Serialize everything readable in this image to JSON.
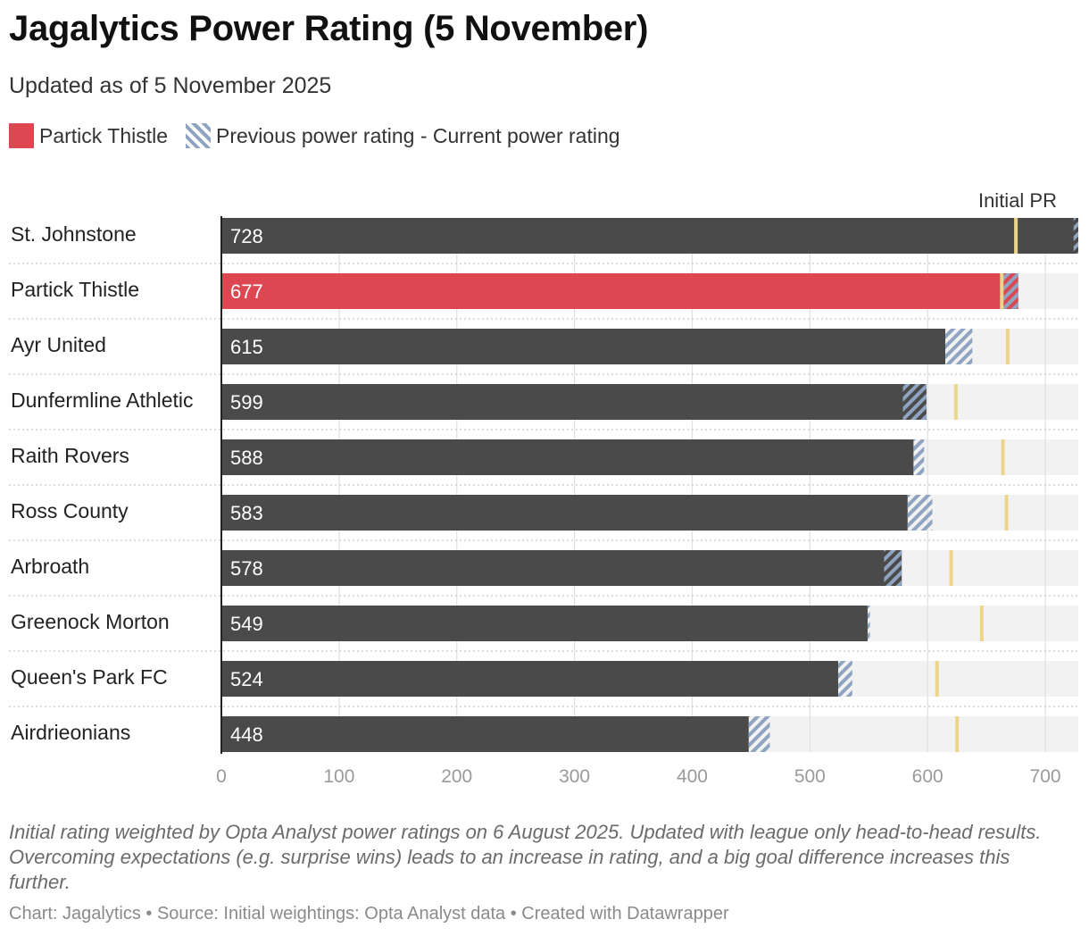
{
  "header": {
    "title": "Jagalytics Power Rating (5 November)",
    "subtitle": "Updated as of 5 November 2025"
  },
  "legend": {
    "highlight_label": "Partick Thistle",
    "change_label": "Previous power rating - Current power rating"
  },
  "chart_data": {
    "type": "bar",
    "orientation": "horizontal",
    "categories": [
      "St. Johnstone",
      "Partick Thistle",
      "Ayr United",
      "Dunfermline Athletic",
      "Raith Rovers",
      "Ross County",
      "Arbroath",
      "Greenock Morton",
      "Queen's Park FC",
      "Airdrieonians"
    ],
    "current": [
      728,
      677,
      615,
      599,
      588,
      583,
      578,
      549,
      524,
      448
    ],
    "previous": [
      724,
      664,
      638,
      579,
      597,
      604,
      563,
      551,
      536,
      466
    ],
    "initial": [
      675,
      663,
      668,
      624,
      664,
      667,
      620,
      646,
      608,
      625
    ],
    "value_labels": [
      "728",
      "677",
      "615",
      "599",
      "588",
      "583",
      "578",
      "549",
      "524",
      "448"
    ],
    "highlight": "Partick Thistle",
    "x_ticks": [
      0,
      100,
      200,
      300,
      400,
      500,
      600,
      700
    ],
    "x_tick_labels": [
      "0",
      "100",
      "200",
      "300",
      "400",
      "500",
      "600",
      "700"
    ],
    "xlim": [
      0,
      728
    ],
    "marker_label": "Initial PR",
    "grid": true,
    "legend_position": "top-left",
    "colors": {
      "bar": "#4a4a4a",
      "highlight": "#dc4751",
      "track": "#f2f2f2",
      "hatch": "#8ea4c0",
      "marker": "#ecd58a",
      "grid": "#e0e0e0"
    }
  },
  "footer": {
    "notes": "Initial rating weighted by Opta Analyst power ratings on 6 August 2025. Updated with league only head-to-head results. Overcoming expectations (e.g. surprise wins) leads to an increase in rating, and a big goal difference increases this further.",
    "credits": "Chart: Jagalytics • Source: Initial weightings: Opta Analyst data • Created with Datawrapper"
  }
}
